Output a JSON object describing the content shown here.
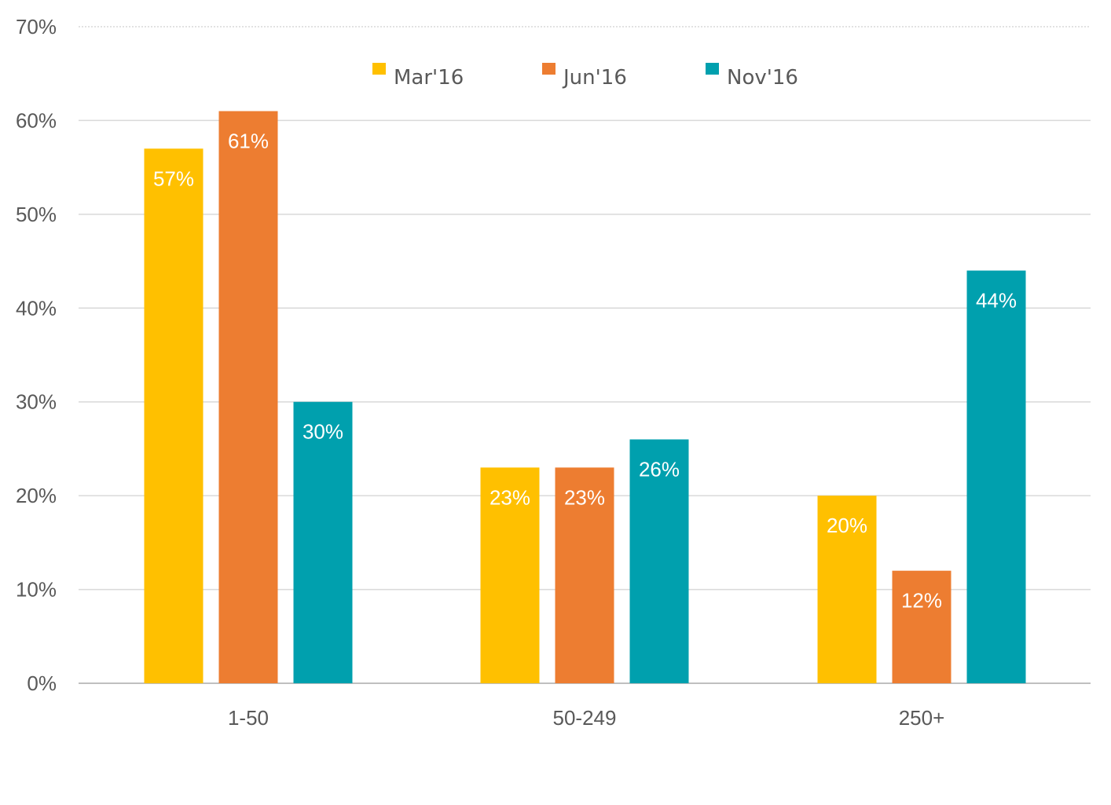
{
  "chart_data": {
    "type": "bar",
    "categories": [
      "1-50",
      "50-249",
      "250+"
    ],
    "series": [
      {
        "name": "Mar'16",
        "values": [
          57,
          23,
          20
        ],
        "labels": [
          "57%",
          "23%",
          "20%"
        ],
        "color": "#FFC000"
      },
      {
        "name": "Jun'16",
        "values": [
          61,
          23,
          12
        ],
        "labels": [
          "61%",
          "23%",
          "12%"
        ],
        "color": "#ED7D31"
      },
      {
        "name": "Nov'16",
        "values": [
          30,
          26,
          44
        ],
        "labels": [
          "30%",
          "26%",
          "44%"
        ],
        "color": "#00A0AE"
      }
    ],
    "y_ticks": [
      0,
      10,
      20,
      30,
      40,
      50,
      60,
      70
    ],
    "y_tick_labels": [
      "0%",
      "10%",
      "20%",
      "30%",
      "40%",
      "50%",
      "60%",
      "70%"
    ],
    "ylim": [
      0,
      70
    ],
    "title": "",
    "xlabel": "",
    "ylabel": "",
    "grid": true,
    "legend_position": "top-center"
  }
}
